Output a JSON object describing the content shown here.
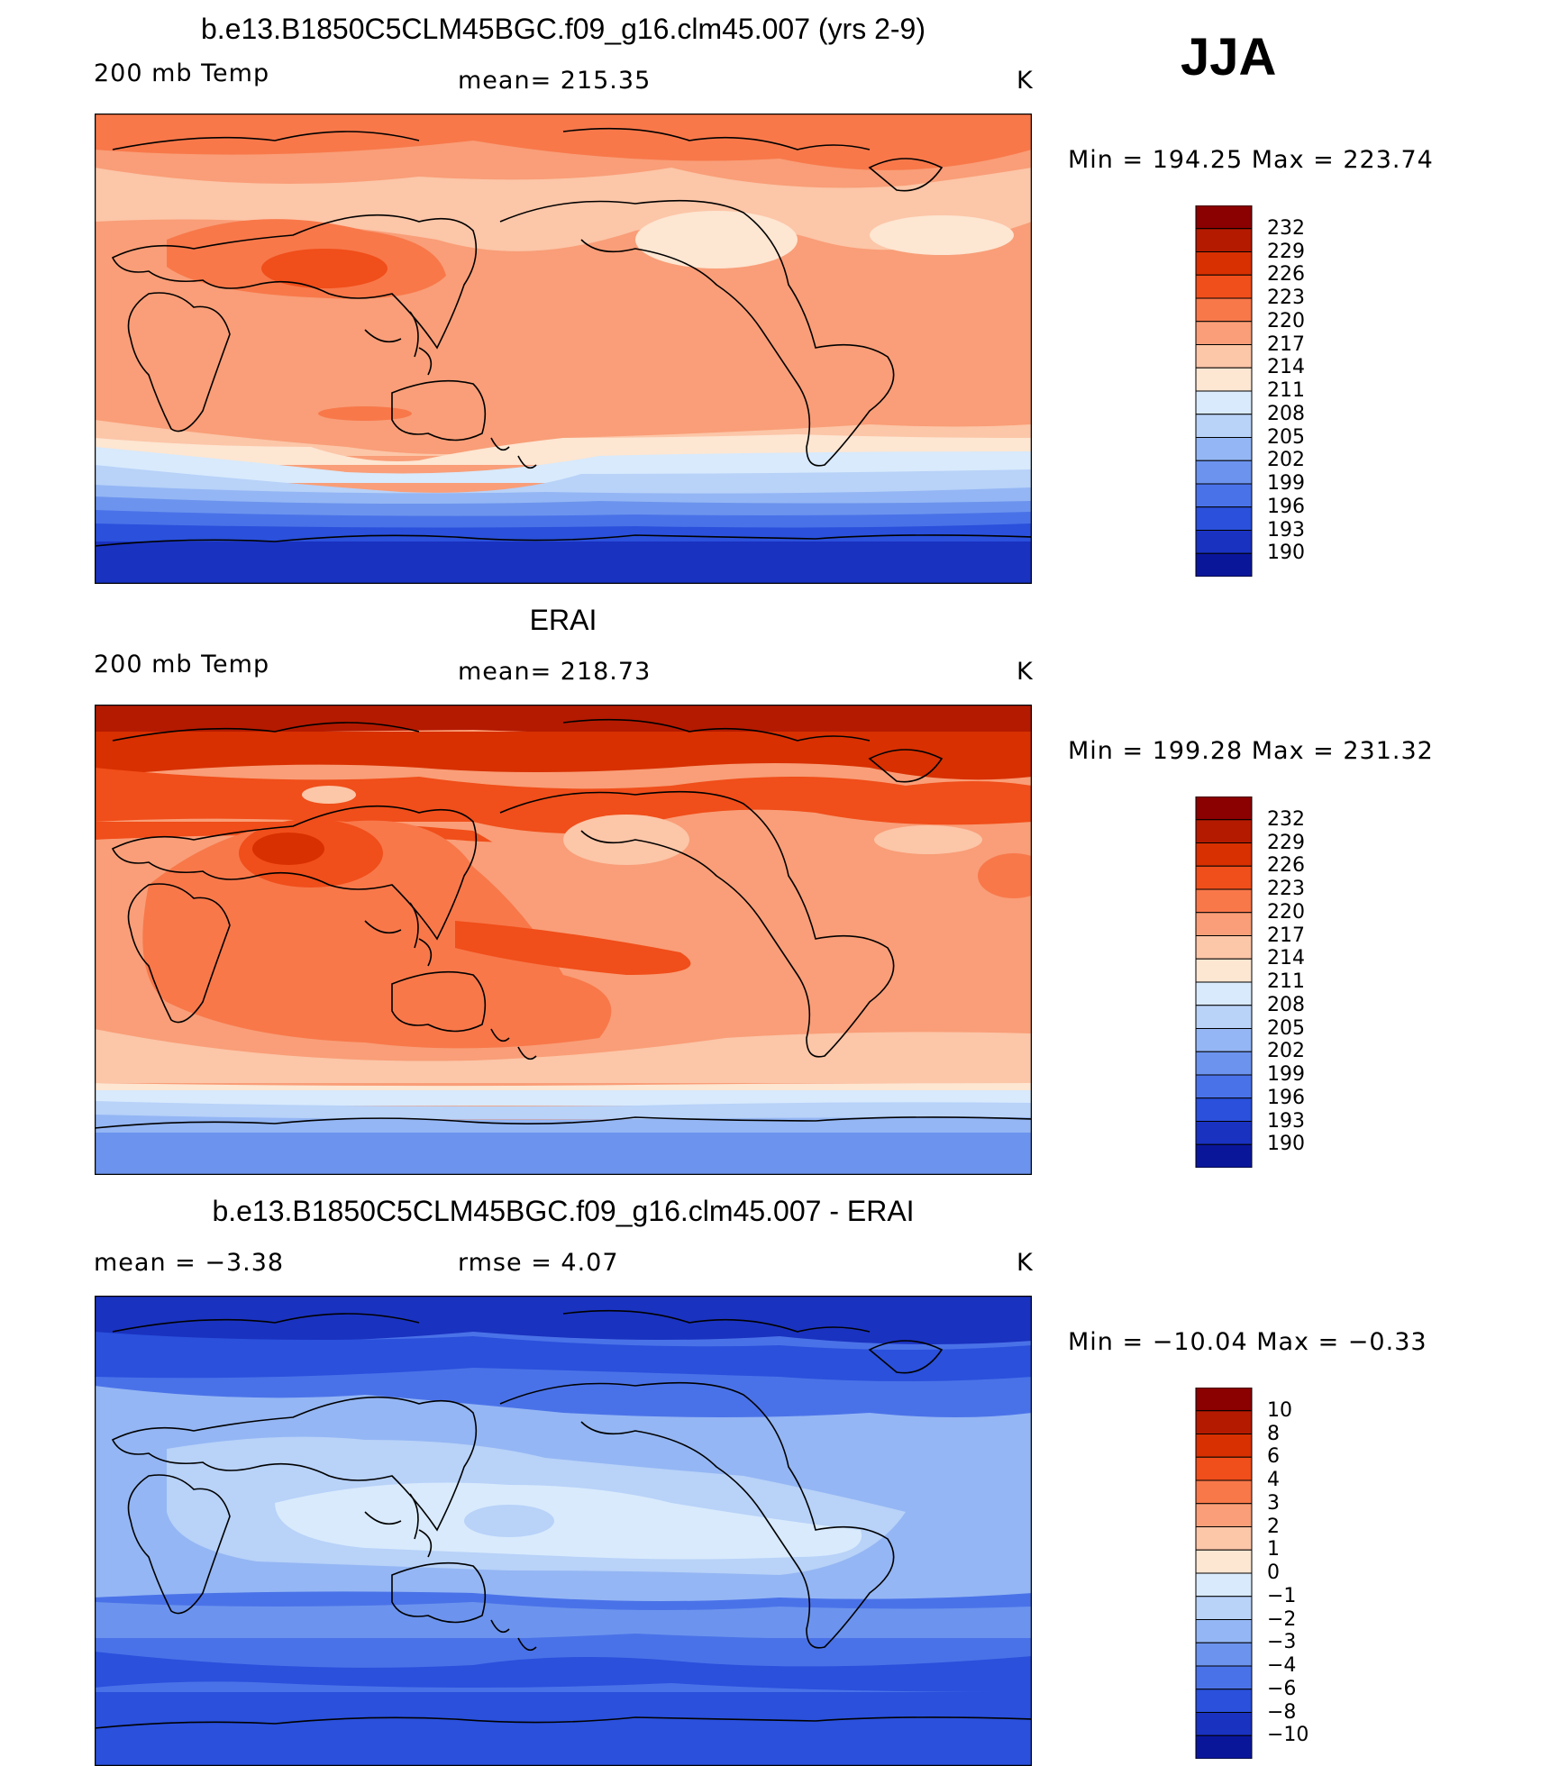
{
  "season": "JJA",
  "panels": [
    {
      "title": "b.e13.B1850C5CLM45BGC.f09_g16.clm45.007 (yrs 2-9)",
      "left_label": "200 mb Temp",
      "center_label": "mean= 215.35",
      "units": "K",
      "minmax": "Min = 194.25 Max = 223.74",
      "colorbar_ticks": [
        "232",
        "229",
        "226",
        "223",
        "220",
        "217",
        "214",
        "211",
        "208",
        "205",
        "202",
        "199",
        "196",
        "193",
        "190"
      ],
      "colorbar_colors": [
        "#8b0000",
        "#b41a00",
        "#d83000",
        "#f04e1a",
        "#f8784a",
        "#f99e78",
        "#fcc6a8",
        "#fde6d2",
        "#d8eafc",
        "#b8d2f8",
        "#94b6f4",
        "#6c94ee",
        "#4a72e8",
        "#2a50dc",
        "#1a32c0",
        "#0a169a"
      ]
    },
    {
      "title": "ERAI",
      "left_label": "200 mb Temp",
      "center_label": "mean= 218.73",
      "units": "K",
      "minmax": "Min = 199.28 Max = 231.32",
      "colorbar_ticks": [
        "232",
        "229",
        "226",
        "223",
        "220",
        "217",
        "214",
        "211",
        "208",
        "205",
        "202",
        "199",
        "196",
        "193",
        "190"
      ],
      "colorbar_colors": [
        "#8b0000",
        "#b41a00",
        "#d83000",
        "#f04e1a",
        "#f8784a",
        "#f99e78",
        "#fcc6a8",
        "#fde6d2",
        "#d8eafc",
        "#b8d2f8",
        "#94b6f4",
        "#6c94ee",
        "#4a72e8",
        "#2a50dc",
        "#1a32c0",
        "#0a169a"
      ]
    },
    {
      "title": "b.e13.B1850C5CLM45BGC.f09_g16.clm45.007 - ERAI",
      "left_label": "mean =   −3.38",
      "center_label": "rmse =    4.07",
      "units": "K",
      "minmax": "Min = −10.04 Max =   −0.33",
      "colorbar_ticks": [
        "10",
        "8",
        "6",
        "4",
        "3",
        "2",
        "1",
        "0",
        "−1",
        "−2",
        "−3",
        "−4",
        "−6",
        "−8",
        "−10"
      ],
      "colorbar_colors": [
        "#8b0000",
        "#b41a00",
        "#d83000",
        "#f04e1a",
        "#f8784a",
        "#f99e78",
        "#fcc6a8",
        "#fde6d2",
        "#d8eafc",
        "#b8d2f8",
        "#94b6f4",
        "#6c94ee",
        "#4a72e8",
        "#2a50dc",
        "#1a32c0",
        "#0a169a"
      ]
    }
  ]
}
